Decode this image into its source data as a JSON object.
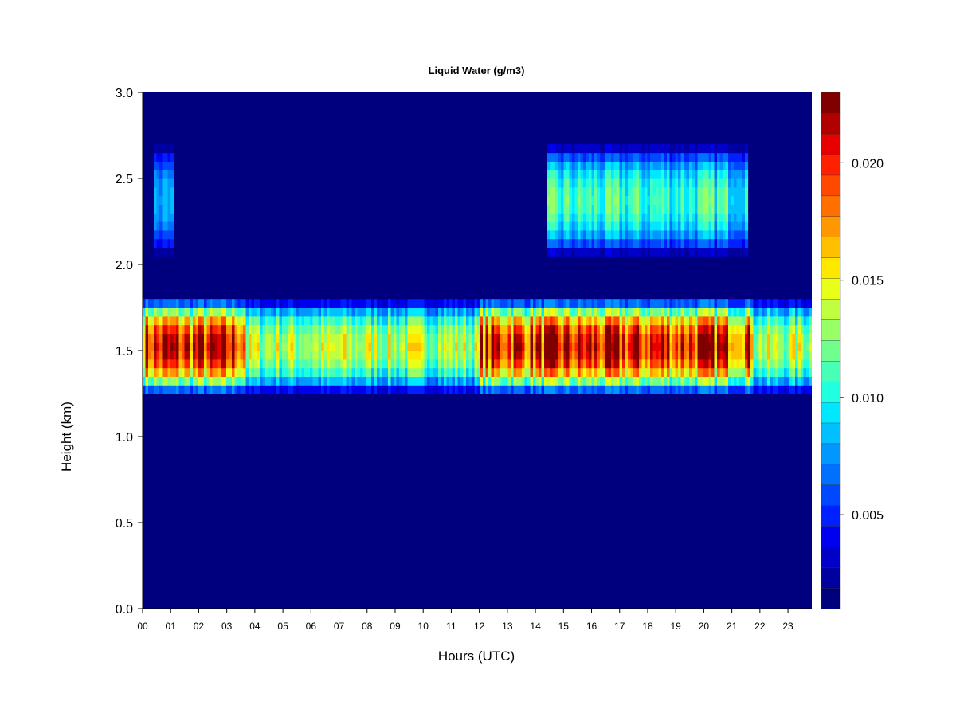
{
  "chart_data": {
    "type": "heatmap",
    "title": "Liquid Water (g/m3)",
    "xlabel": "Hours (UTC)",
    "ylabel": "Height (km)",
    "x_tick_labels": [
      "00",
      "01",
      "02",
      "03",
      "04",
      "05",
      "06",
      "07",
      "08",
      "09",
      "10",
      "11",
      "12",
      "13",
      "14",
      "15",
      "16",
      "17",
      "18",
      "19",
      "20",
      "21",
      "22",
      "23"
    ],
    "xlim": [
      0,
      23.85
    ],
    "y_tick_labels": [
      "0.0",
      "0.5",
      "1.0",
      "1.5",
      "2.0",
      "2.5",
      "3.0"
    ],
    "y_ticks": [
      0.0,
      0.5,
      1.0,
      1.5,
      2.0,
      2.5,
      3.0
    ],
    "ylim": [
      0,
      3.0
    ],
    "colorbar": {
      "tick_labels": [
        "0.005",
        "0.010",
        "0.015",
        "0.020"
      ],
      "ticks": [
        0.005,
        0.01,
        0.015,
        0.02
      ],
      "range": [
        0.001,
        0.023
      ],
      "colors": [
        "#00007F",
        "#0000A0",
        "#0000C8",
        "#0000F0",
        "#0020FF",
        "#0048FF",
        "#0070FF",
        "#0098FF",
        "#00C0FF",
        "#00E8FF",
        "#20FFDF",
        "#48FFB7",
        "#70FF8F",
        "#98FF67",
        "#C0FF3F",
        "#E8FF17",
        "#FFE800",
        "#FFC000",
        "#FF9800",
        "#FF7000",
        "#FF4800",
        "#FF2000",
        "#E80000",
        "#B00000",
        "#800000"
      ]
    },
    "cloud_layers": [
      {
        "base_km": 1.25,
        "top_km": 1.8,
        "hours": [
          0,
          3.7
        ],
        "peak_g_m3": 0.021
      },
      {
        "base_km": 1.25,
        "top_km": 1.8,
        "hours": [
          3.7,
          12.0
        ],
        "peak_g_m3": 0.014
      },
      {
        "base_km": 1.25,
        "top_km": 1.8,
        "hours": [
          12.0,
          21.8
        ],
        "peak_g_m3": 0.021
      },
      {
        "base_km": 1.25,
        "top_km": 1.8,
        "hours": [
          21.8,
          23.85
        ],
        "peak_g_m3": 0.014
      },
      {
        "base_km": 2.05,
        "top_km": 2.7,
        "hours": [
          0.35,
          1.05
        ],
        "peak_g_m3": 0.008
      },
      {
        "base_km": 2.05,
        "top_km": 2.7,
        "hours": [
          14.4,
          21.6
        ],
        "peak_g_m3": 0.011
      }
    ],
    "background_g_m3": 0.001,
    "grid": false,
    "legend": "right"
  }
}
